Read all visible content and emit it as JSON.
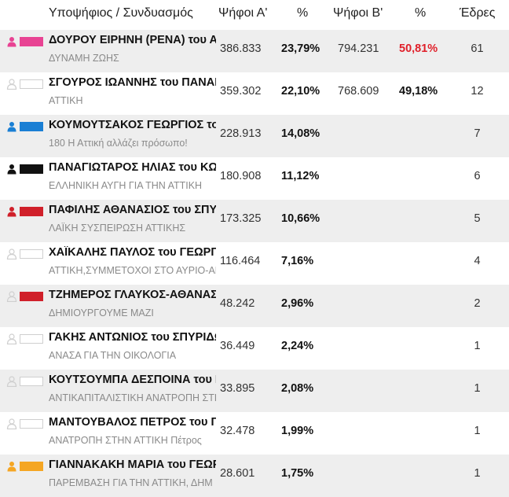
{
  "header": {
    "candidate": "Υποψήφιος / Συνδυασμός",
    "votes_a": "Ψήφοι Α'",
    "pct_a": "%",
    "votes_b": "Ψήφοι Β'",
    "pct_b": "%",
    "seats": "Έδρες"
  },
  "rows": [
    {
      "name": "ΔΟΥΡΟΥ ΕΙΡΗΝΗ (ΡΕΝΑ) του ΑΝΔΡΕΑ",
      "party": "ΔΥΝΑΜΗ ΖΩΗΣ",
      "votes_a": "386.833",
      "pct_a": "23,79%",
      "votes_b": "794.231",
      "pct_b": "50,81%",
      "seats": "61",
      "color": "#e84393",
      "icon_color": "#e84393",
      "highlight_b": true
    },
    {
      "name": "ΣΓΟΥΡΟΣ ΙΩΑΝΝΗΣ του ΠΑΝΑΓΙΩΤΗ",
      "party": "ΑΤΤΙΚΗ",
      "votes_a": "359.302",
      "pct_a": "22,10%",
      "votes_b": "768.609",
      "pct_b": "49,18%",
      "seats": "12",
      "color": "",
      "icon_color": "#cfcfcf",
      "highlight_b": false
    },
    {
      "name": "ΚΟΥΜΟΥΤΣΑΚΟΣ ΓΕΩΡΓΙΟΣ του ΙΩΑΝΝΗ",
      "party": "180 Η Αττική αλλάζει πρόσωπο!",
      "votes_a": "228.913",
      "pct_a": "14,08%",
      "votes_b": "",
      "pct_b": "",
      "seats": "7",
      "color": "#1a7fd4",
      "icon_color": "#1a7fd4",
      "highlight_b": false
    },
    {
      "name": "ΠΑΝΑΓΙΩΤΑΡΟΣ ΗΛΙΑΣ του ΚΩΝΣΤΑΝΤΙΝΟΥ",
      "party": "ΕΛΛΗΝΙΚΗ ΑΥΓΗ ΓΙΑ ΤΗΝ ΑΤΤΙΚΗ",
      "votes_a": "180.908",
      "pct_a": "11,12%",
      "votes_b": "",
      "pct_b": "",
      "seats": "6",
      "color": "#111111",
      "icon_color": "#111111",
      "highlight_b": false
    },
    {
      "name": "ΠΑΦΙΛΗΣ ΑΘΑΝΑΣΙΟΣ του ΣΠΥΡΙΔΩΝΟΣ",
      "party": "ΛΑΪΚΗ ΣΥΣΠΕΙΡΩΣΗ ΑΤΤΙΚΗΣ",
      "votes_a": "173.325",
      "pct_a": "10,66%",
      "votes_b": "",
      "pct_b": "",
      "seats": "5",
      "color": "#d0202a",
      "icon_color": "#d0202a",
      "highlight_b": false
    },
    {
      "name": "ΧΑΪΚΑΛΗΣ ΠΑΥΛΟΣ του ΓΕΩΡΓΙΟΥ",
      "party": "ΑΤΤΙΚΗ,ΣΥΜΜΕΤΟΧΟΙ ΣΤΟ ΑΥΡΙΟ-ΑΝ",
      "votes_a": "116.464",
      "pct_a": "7,16%",
      "votes_b": "",
      "pct_b": "",
      "seats": "4",
      "color": "",
      "icon_color": "#cfcfcf",
      "highlight_b": false
    },
    {
      "name": "ΤΖΗΜΕΡΟΣ ΓΛΑΥΚΟΣ-ΑΘΑΝΑΣΙΟΣ",
      "party": "ΔΗΜΙΟΥΡΓΟΥΜΕ ΜΑΖΙ",
      "votes_a": "48.242",
      "pct_a": "2,96%",
      "votes_b": "",
      "pct_b": "",
      "seats": "2",
      "color": "#d0202a",
      "icon_color": "#cfcfcf",
      "highlight_b": false
    },
    {
      "name": "ΓΑΚΗΣ ΑΝΤΩΝΙΟΣ του ΣΠΥΡΙΔΩΝΟΣ",
      "party": "ΑΝΑΣΑ ΓΙΑ ΤΗΝ ΟΙΚΟΛΟΓΙΑ",
      "votes_a": "36.449",
      "pct_a": "2,24%",
      "votes_b": "",
      "pct_b": "",
      "seats": "1",
      "color": "",
      "icon_color": "#cfcfcf",
      "highlight_b": false
    },
    {
      "name": "ΚΟΥΤΣΟΥΜΠΑ ΔΕΣΠΟΙΝΑ του ΝΙΚΟΛΑΟΥ",
      "party": "ΑΝΤΙΚΑΠΙΤΑΛΙΣΤΙΚΗ ΑΝΑΤΡΟΠΗ ΣΤΗΝ",
      "votes_a": "33.895",
      "pct_a": "2,08%",
      "votes_b": "",
      "pct_b": "",
      "seats": "1",
      "color": "",
      "icon_color": "#cfcfcf",
      "highlight_b": false
    },
    {
      "name": "ΜΑΝΤΟΥΒΑΛΟΣ ΠΕΤΡΟΣ του ΓΕΩΡΓΙΟΥ",
      "party": "ΑΝΑΤΡΟΠΗ ΣΤΗΝ ΑΤΤΙΚΗ Πέτρος",
      "votes_a": "32.478",
      "pct_a": "1,99%",
      "votes_b": "",
      "pct_b": "",
      "seats": "1",
      "color": "",
      "icon_color": "#cfcfcf",
      "highlight_b": false
    },
    {
      "name": "ΓΙΑΝΝΑΚΑΚΗ ΜΑΡΙΑ του ΓΕΩΡΓΙΟΥ",
      "party": "ΠΑΡΕΜΒΑΣΗ ΓΙΑ ΤΗΝ ΑΤΤΙΚΗ, ΔΗΜ",
      "votes_a": "28.601",
      "pct_a": "1,75%",
      "votes_b": "",
      "pct_b": "",
      "seats": "1",
      "color": "#f5a623",
      "icon_color": "#f5a623",
      "highlight_b": false
    }
  ]
}
